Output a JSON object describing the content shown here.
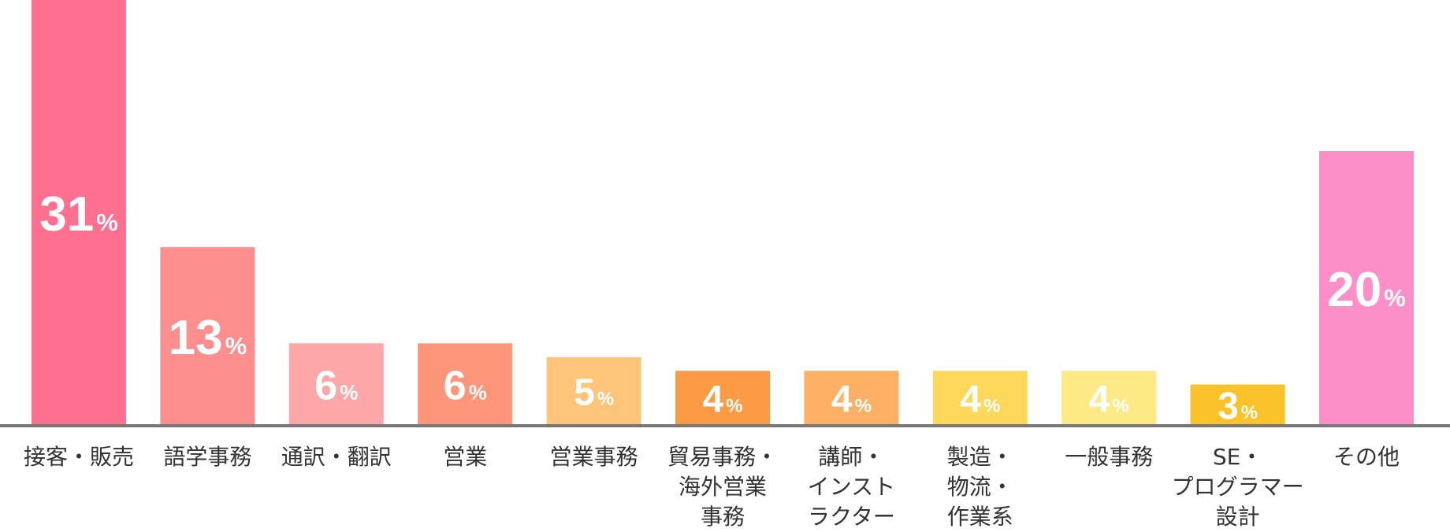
{
  "chart_data": {
    "type": "bar",
    "unit": "%",
    "categories": [
      [
        "接客・販売"
      ],
      [
        "語学事務"
      ],
      [
        "通訳・翻訳"
      ],
      [
        "営業"
      ],
      [
        "営業事務"
      ],
      [
        "貿易事務・",
        "海外営業",
        "事務"
      ],
      [
        "講師・",
        "インスト",
        "ラクター"
      ],
      [
        "製造・",
        "物流・",
        "作業系"
      ],
      [
        "一般事務"
      ],
      [
        "SE・",
        "プログラマー",
        "設計"
      ],
      [
        "その他"
      ]
    ],
    "values": [
      31,
      13,
      6,
      6,
      5,
      4,
      4,
      4,
      4,
      3,
      20
    ],
    "colors": [
      "#ff7090",
      "#fd8e8e",
      "#fda7a8",
      "#fd957a",
      "#fdc47a",
      "#fd9a45",
      "#fdb063",
      "#fdd85a",
      "#fde985",
      "#fbc22a",
      "#fd8fc8"
    ],
    "ylim": [
      0,
      31
    ],
    "title": "",
    "xlabel": "",
    "ylabel": "",
    "grid": false,
    "legend": "none"
  }
}
